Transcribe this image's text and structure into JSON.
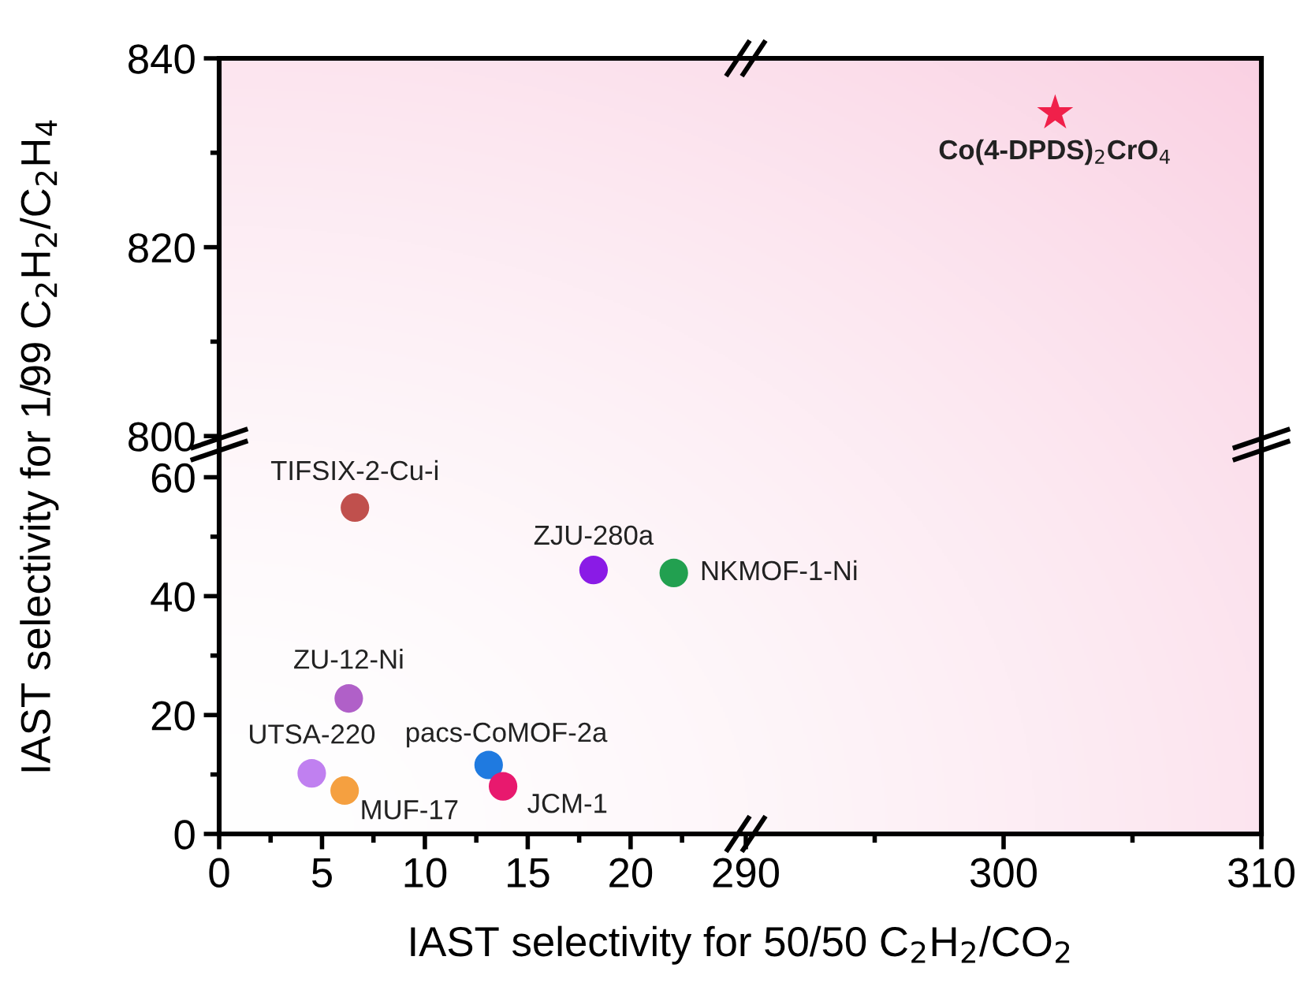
{
  "chart_data": [
    {
      "type": "scatter",
      "xlim": [
        0,
        25.6
      ],
      "ylim": [
        799.1,
        840
      ],
      "yticks": [
        800,
        {
          "value": 810,
          "label": null
        },
        820,
        {
          "value": 830,
          "label": null
        },
        840
      ],
      "tick_labels": "y",
      "grid": false
    },
    {
      "type": "scatter",
      "xlim": [
        290,
        310
      ],
      "ylim": [
        799.1,
        840
      ],
      "tick_labels": false,
      "grid": false,
      "series": [
        {
          "name": "Co(4-DPDS)$_{2}$CrO$_{4}$",
          "color": "#f0204a",
          "marker": "star",
          "x": [
            302.0
          ],
          "values": [
            834.2
          ]
        }
      ]
    },
    {
      "type": "scatter",
      "xlim": [
        0,
        25.6
      ],
      "ylim": [
        0,
        65.5
      ],
      "xticks": [
        0,
        {
          "value": 2.5,
          "label": null
        },
        5,
        {
          "value": 7.5,
          "label": null
        },
        10,
        {
          "value": 12.5,
          "label": null
        },
        15,
        {
          "value": 17.5,
          "label": null
        },
        20,
        {
          "value": 22.5,
          "label": null
        }
      ],
      "yticks": [
        0,
        {
          "value": 10,
          "label": null
        },
        20,
        {
          "value": 30,
          "label": null
        },
        40,
        {
          "value": 50,
          "label": null
        },
        60
      ],
      "xlabel": "IAST selectivity for 50/50 C$_{2}$H$_{2}$/CO$_{2}$",
      "ylabel": "IAST selectivity for 1/99 C$_{2}$H$_{2}$/C$_{2}$H$_{4}$",
      "grid": false,
      "series": [
        {
          "name": "TIFSIX-2-Cu-i",
          "color": "#c0504d",
          "marker": "circle",
          "x": [
            6.6
          ],
          "values": [
            54.9
          ]
        },
        {
          "name": "ZJU-280a",
          "color": "#8a1be6",
          "marker": "circle",
          "x": [
            18.2
          ],
          "values": [
            44.4
          ]
        },
        {
          "name": "NKMOF-1-Ni",
          "color": "#22a050",
          "marker": "circle",
          "x": [
            22.1
          ],
          "values": [
            43.9
          ]
        },
        {
          "name": "ZU-12-Ni",
          "color": "#b060c8",
          "marker": "circle",
          "x": [
            6.3
          ],
          "values": [
            22.8
          ]
        },
        {
          "name": "UTSA-220",
          "color": "#c080f0",
          "marker": "circle",
          "x": [
            4.5
          ],
          "values": [
            10.2
          ]
        },
        {
          "name": "MUF-17",
          "color": "#f5a040",
          "marker": "circle",
          "x": [
            6.1
          ],
          "values": [
            7.3
          ]
        },
        {
          "name": "pacs-CoMOF-2a",
          "color": "#1f7ae0",
          "marker": "circle",
          "x": [
            13.1
          ],
          "values": [
            11.6
          ]
        },
        {
          "name": "JCM-1",
          "color": "#e8196e",
          "marker": "circle",
          "x": [
            13.8
          ],
          "values": [
            8.0
          ]
        }
      ]
    },
    {
      "type": "scatter",
      "xlim": [
        290,
        310
      ],
      "ylim": [
        0,
        65.5
      ],
      "xticks": [
        290,
        {
          "value": 295,
          "label": null
        },
        300,
        {
          "value": 305,
          "label": null
        },
        310
      ],
      "tick_labels": "x",
      "grid": false
    }
  ]
}
